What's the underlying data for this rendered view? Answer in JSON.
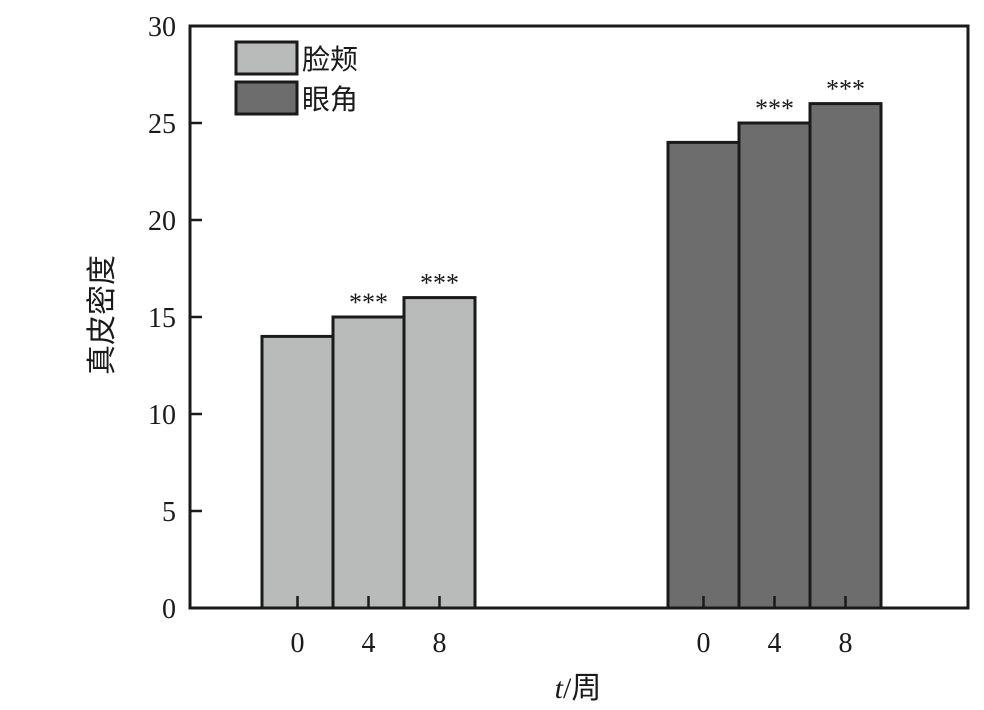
{
  "chart_data": {
    "type": "bar",
    "title": "",
    "xlabel_var": "t",
    "xlabel_unit": "/周",
    "ylabel": "真皮密度",
    "ylim": [
      0,
      30
    ],
    "yticks": [
      0,
      5,
      10,
      15,
      20,
      25,
      30
    ],
    "grid": false,
    "legend_position": "top-left",
    "series": [
      {
        "name": "脸颊",
        "color": "#b9bbba",
        "categories": [
          "0",
          "4",
          "8"
        ],
        "values": [
          14,
          15,
          16
        ],
        "annotations": [
          "",
          "***",
          "***"
        ]
      },
      {
        "name": "眼角",
        "color": "#6d6d6d",
        "categories": [
          "0",
          "4",
          "8"
        ],
        "values": [
          24,
          25,
          26
        ],
        "annotations": [
          "",
          "***",
          "***"
        ]
      }
    ]
  }
}
